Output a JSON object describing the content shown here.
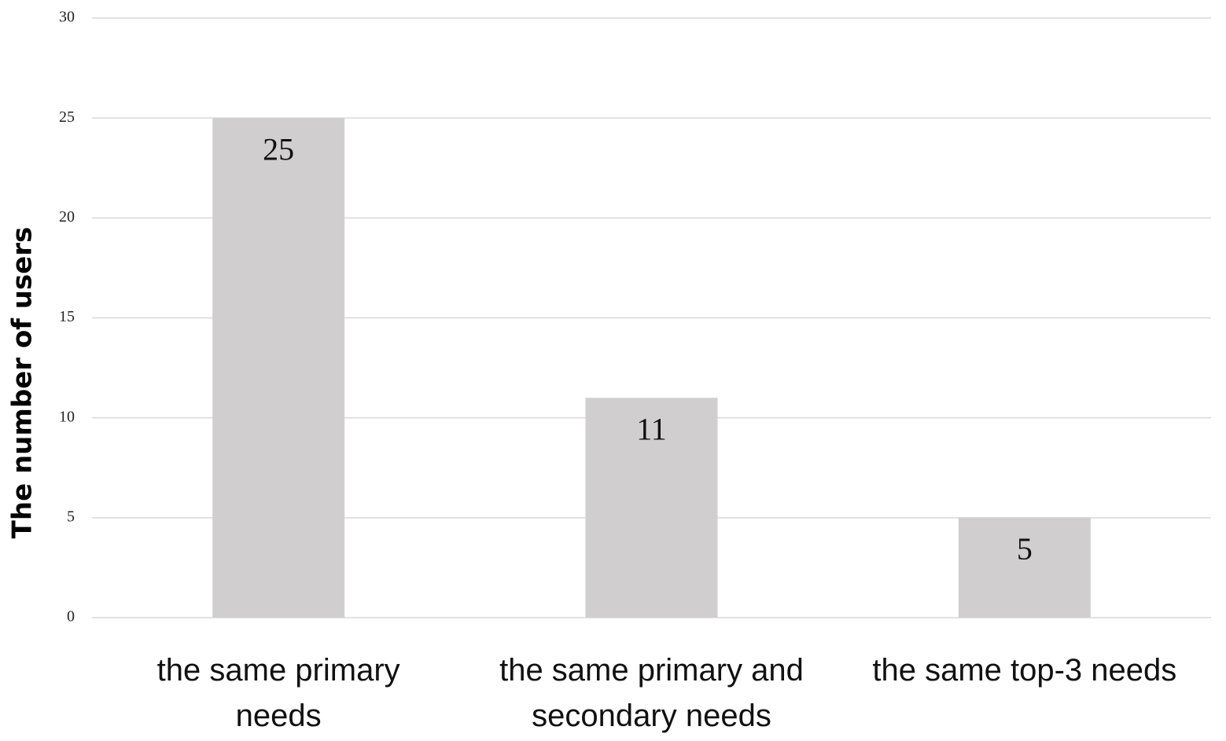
{
  "chart_data": {
    "type": "bar",
    "y_label": "The number of users",
    "categories": [
      "the same primary needs",
      "the same primary and secondary needs",
      "the same top-3 needs"
    ],
    "values": [
      25,
      11,
      5
    ],
    "color": "#d0cece",
    "ylim": [
      0,
      30
    ],
    "yticks": [
      0,
      5,
      10,
      15,
      20,
      25,
      30
    ],
    "grid": true
  }
}
